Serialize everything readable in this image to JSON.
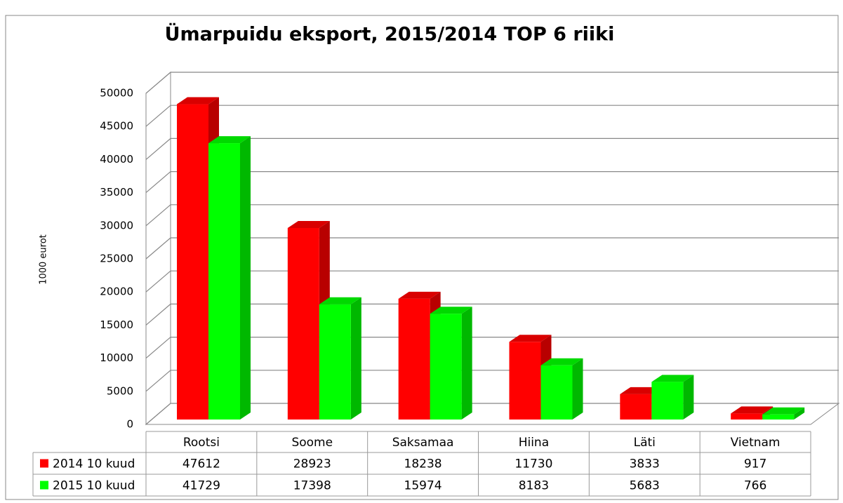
{
  "chart_data": {
    "type": "bar3d",
    "title": "Ümarpuidu eksport, 2015/2014 TOP 6 riiki",
    "y_label": "1000 eurot",
    "categories": [
      "Rootsi",
      "Soome",
      "Saksamaa",
      "Hiina",
      "Läti",
      "Vietnam"
    ],
    "series": [
      {
        "name": "2014 10 kuud",
        "color": "#ff0000",
        "values": [
          47612,
          28923,
          18238,
          11730,
          3833,
          917
        ]
      },
      {
        "name": "2015 10 kuud",
        "color": "#00ff00",
        "values": [
          41729,
          17398,
          15974,
          8183,
          5683,
          766
        ]
      }
    ],
    "ylim": [
      0,
      50000
    ],
    "yticks": [
      0,
      5000,
      10000,
      15000,
      20000,
      25000,
      30000,
      35000,
      40000,
      45000,
      50000
    ],
    "grid": true
  }
}
